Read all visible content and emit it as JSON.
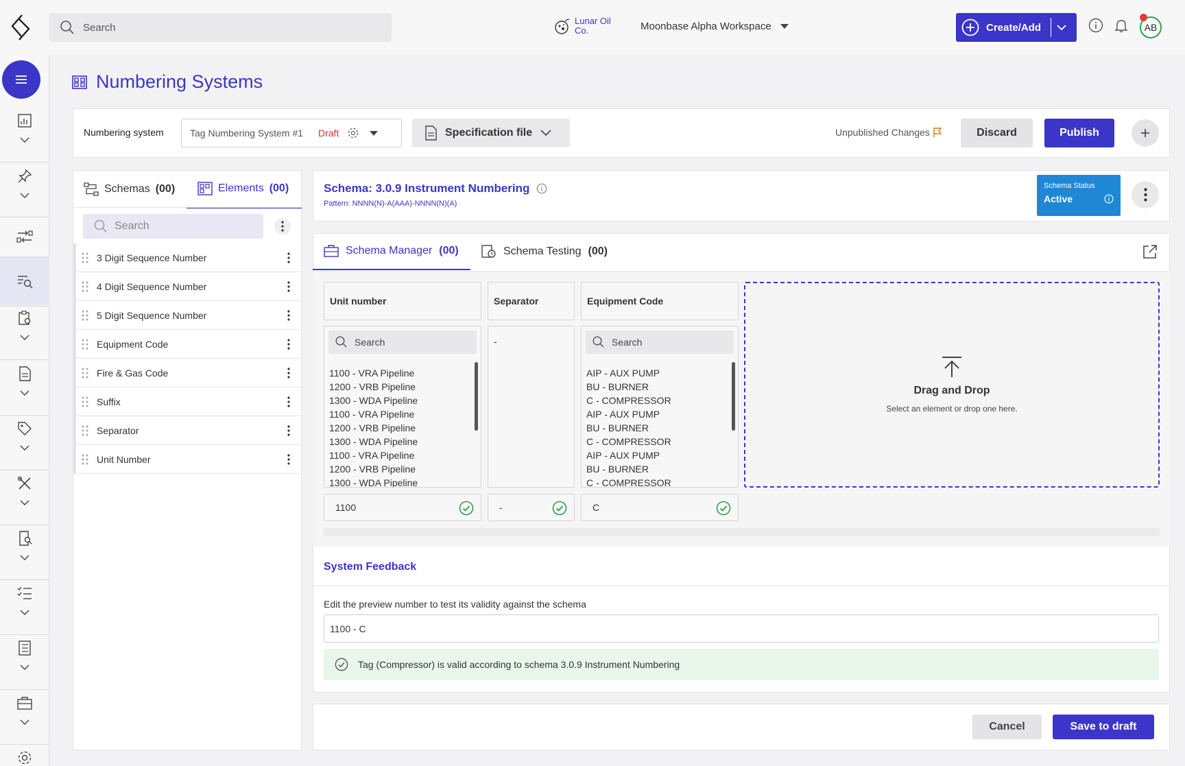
{
  "header": {
    "search_placeholder": "Search",
    "brand_line1": "Lunar Oil",
    "brand_line2": "Co.",
    "workspace": "Moonbase Alpha Workspace",
    "create_label": "Create/Add",
    "avatar_initials": "AB",
    "has_notification": true
  },
  "page": {
    "title": "Numbering Systems"
  },
  "toolbar": {
    "label": "Numbering system",
    "system_name": "Tag Numbering System #1",
    "system_status": "Draft",
    "spec_label": "Specification file",
    "unpublished": "Unpublished Changes",
    "discard": "Discard",
    "publish": "Publish"
  },
  "left_panel": {
    "tabs": [
      {
        "label": "Schemas",
        "count": "(00)"
      },
      {
        "label": "Elements",
        "count": "(00)"
      }
    ],
    "search_placeholder": "Search",
    "elements": [
      "3 Digit Sequence Number",
      "4 Digit Sequence Number",
      "5 Digit Sequence Number",
      "Equipment Code",
      "Fire & Gas Code",
      "Suffix",
      "Separator",
      "Unit Number"
    ]
  },
  "schema": {
    "title": "Schema: 3.0.9 Instrument Numbering",
    "pattern": "Pattern: NNNN(N)-A(AAA)-NNNN(N)(A)",
    "status_title": "Schema Status",
    "status_value": "Active"
  },
  "manager": {
    "tabs": [
      {
        "label": "Schema Manager",
        "count": "(00)"
      },
      {
        "label": "Schema Testing",
        "count": "(00)"
      }
    ],
    "columns": {
      "unit": {
        "header": "Unit number",
        "search": "Search",
        "options": [
          "1100 - VRA Pipeline",
          "1200 - VRB Pipeline",
          "1300 - WDA Pipeline",
          "1100 - VRA Pipeline",
          "1200 - VRB Pipeline",
          "1300 - WDA Pipeline",
          "1100 - VRA Pipeline",
          "1200 - VRB Pipeline",
          "1300 - WDA Pipeline"
        ],
        "value": "1100"
      },
      "separator": {
        "header": "Separator",
        "option": "-",
        "value": "-"
      },
      "equipment": {
        "header": "Equipment Code",
        "search": "Search",
        "options": [
          "AIP - AUX PUMP",
          "BU - BURNER",
          "C - COMPRESSOR",
          "AIP - AUX PUMP",
          "BU - BURNER",
          "C - COMPRESSOR",
          "AIP - AUX PUMP",
          "BU - BURNER",
          "C - COMPRESSOR"
        ],
        "value": "C"
      }
    },
    "drop_title": "Drag and Drop",
    "drop_subtitle": "Select an element or drop one here."
  },
  "feedback": {
    "title": "System Feedback",
    "label": "Edit the preview number to test its validity against the schema",
    "preview_value": "1100 - C",
    "message": "Tag (Compressor) is valid according to schema 3.0.9 Instrument Numbering"
  },
  "footer": {
    "cancel": "Cancel",
    "save": "Save to draft"
  },
  "colors": {
    "accent": "#3b35c9",
    "status_blue": "#1e88d7",
    "draft_red": "#d0342c",
    "ok_green": "#2da14c"
  }
}
